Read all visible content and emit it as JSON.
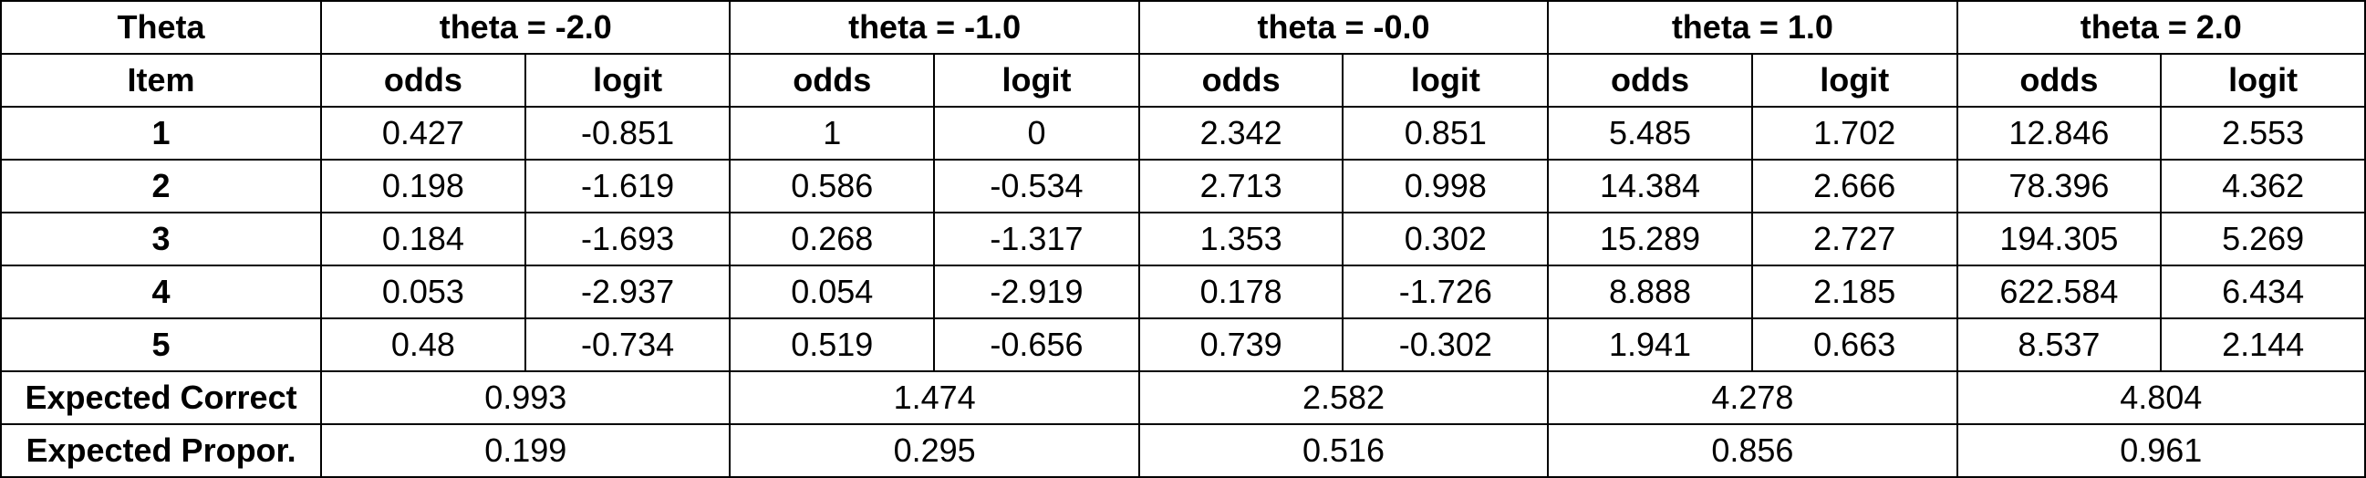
{
  "header": {
    "theta_label": "Theta",
    "item_label": "Item",
    "groups": [
      "theta = -2.0",
      "theta = -1.0",
      "theta = -0.0",
      "theta = 1.0",
      "theta = 2.0"
    ],
    "sub": [
      "odds",
      "logit"
    ]
  },
  "rows": [
    {
      "item": "1",
      "cells": [
        "0.427",
        "-0.851",
        "1",
        "0",
        "2.342",
        "0.851",
        "5.485",
        "1.702",
        "12.846",
        "2.553"
      ]
    },
    {
      "item": "2",
      "cells": [
        "0.198",
        "-1.619",
        "0.586",
        "-0.534",
        "2.713",
        "0.998",
        "14.384",
        "2.666",
        "78.396",
        "4.362"
      ]
    },
    {
      "item": "3",
      "cells": [
        "0.184",
        "-1.693",
        "0.268",
        "-1.317",
        "1.353",
        "0.302",
        "15.289",
        "2.727",
        "194.305",
        "5.269"
      ]
    },
    {
      "item": "4",
      "cells": [
        "0.053",
        "-2.937",
        "0.054",
        "-2.919",
        "0.178",
        "-1.726",
        "8.888",
        "2.185",
        "622.584",
        "6.434"
      ]
    },
    {
      "item": "5",
      "cells": [
        "0.48",
        "-0.734",
        "0.519",
        "-0.656",
        "0.739",
        "-0.302",
        "1.941",
        "0.663",
        "8.537",
        "2.144"
      ]
    }
  ],
  "summary": [
    {
      "label": "Expected Correct",
      "values": [
        "0.993",
        "1.474",
        "2.582",
        "4.278",
        "4.804"
      ]
    },
    {
      "label": "Expected Propor.",
      "values": [
        "0.199",
        "0.295",
        "0.516",
        "0.856",
        "0.961"
      ]
    }
  ]
}
